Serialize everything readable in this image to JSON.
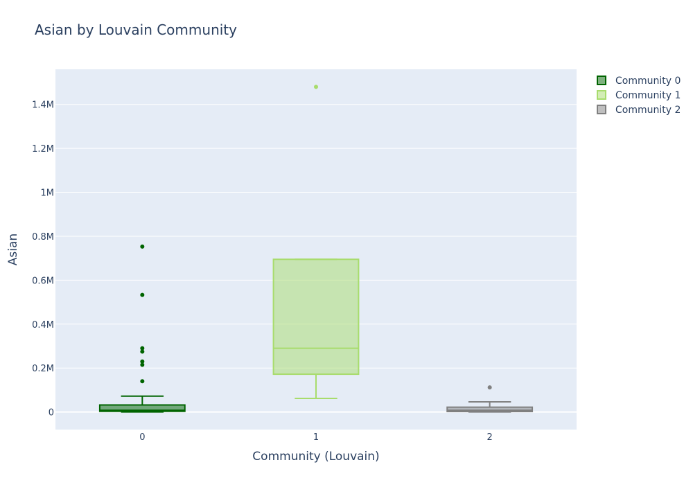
{
  "chart_data": {
    "type": "box",
    "title": "Asian by Louvain Community",
    "xlabel": "Community (Louvain)",
    "ylabel": "Asian",
    "categories": [
      "0",
      "1",
      "2"
    ],
    "ylim": [
      -80000,
      1560000
    ],
    "yticks": [
      {
        "value": 0,
        "label": "0"
      },
      {
        "value": 200000,
        "label": "0.2M"
      },
      {
        "value": 400000,
        "label": "0.4M"
      },
      {
        "value": 600000,
        "label": "0.6M"
      },
      {
        "value": 800000,
        "label": "0.8M"
      },
      {
        "value": 1000000,
        "label": "1M"
      },
      {
        "value": 1200000,
        "label": "1.2M"
      },
      {
        "value": 1400000,
        "label": "1.4M"
      }
    ],
    "grid": true,
    "legend_position": "top-right",
    "series": [
      {
        "name": "Community 0",
        "category": "0",
        "color": "#006400",
        "fill": "rgba(0,100,0,0.5)",
        "min": 0,
        "q1": 3000,
        "median": 8000,
        "q3": 32000,
        "whisker_high": 72000,
        "outliers": [
          140000,
          215000,
          230000,
          275000,
          290000,
          533000,
          753000
        ]
      },
      {
        "name": "Community 1",
        "category": "1",
        "color": "#a8dc6c",
        "fill": "rgba(168,220,108,0.5)",
        "min": 62000,
        "q1": 172000,
        "median": 290000,
        "q3": 695000,
        "whisker_high": 695000,
        "outliers": [
          1480000
        ]
      },
      {
        "name": "Community 2",
        "category": "2",
        "color": "#808080",
        "fill": "rgba(128,128,128,0.5)",
        "min": 0,
        "q1": 2000,
        "median": 8000,
        "q3": 22000,
        "whisker_high": 46000,
        "outliers": [
          112000
        ]
      }
    ]
  }
}
